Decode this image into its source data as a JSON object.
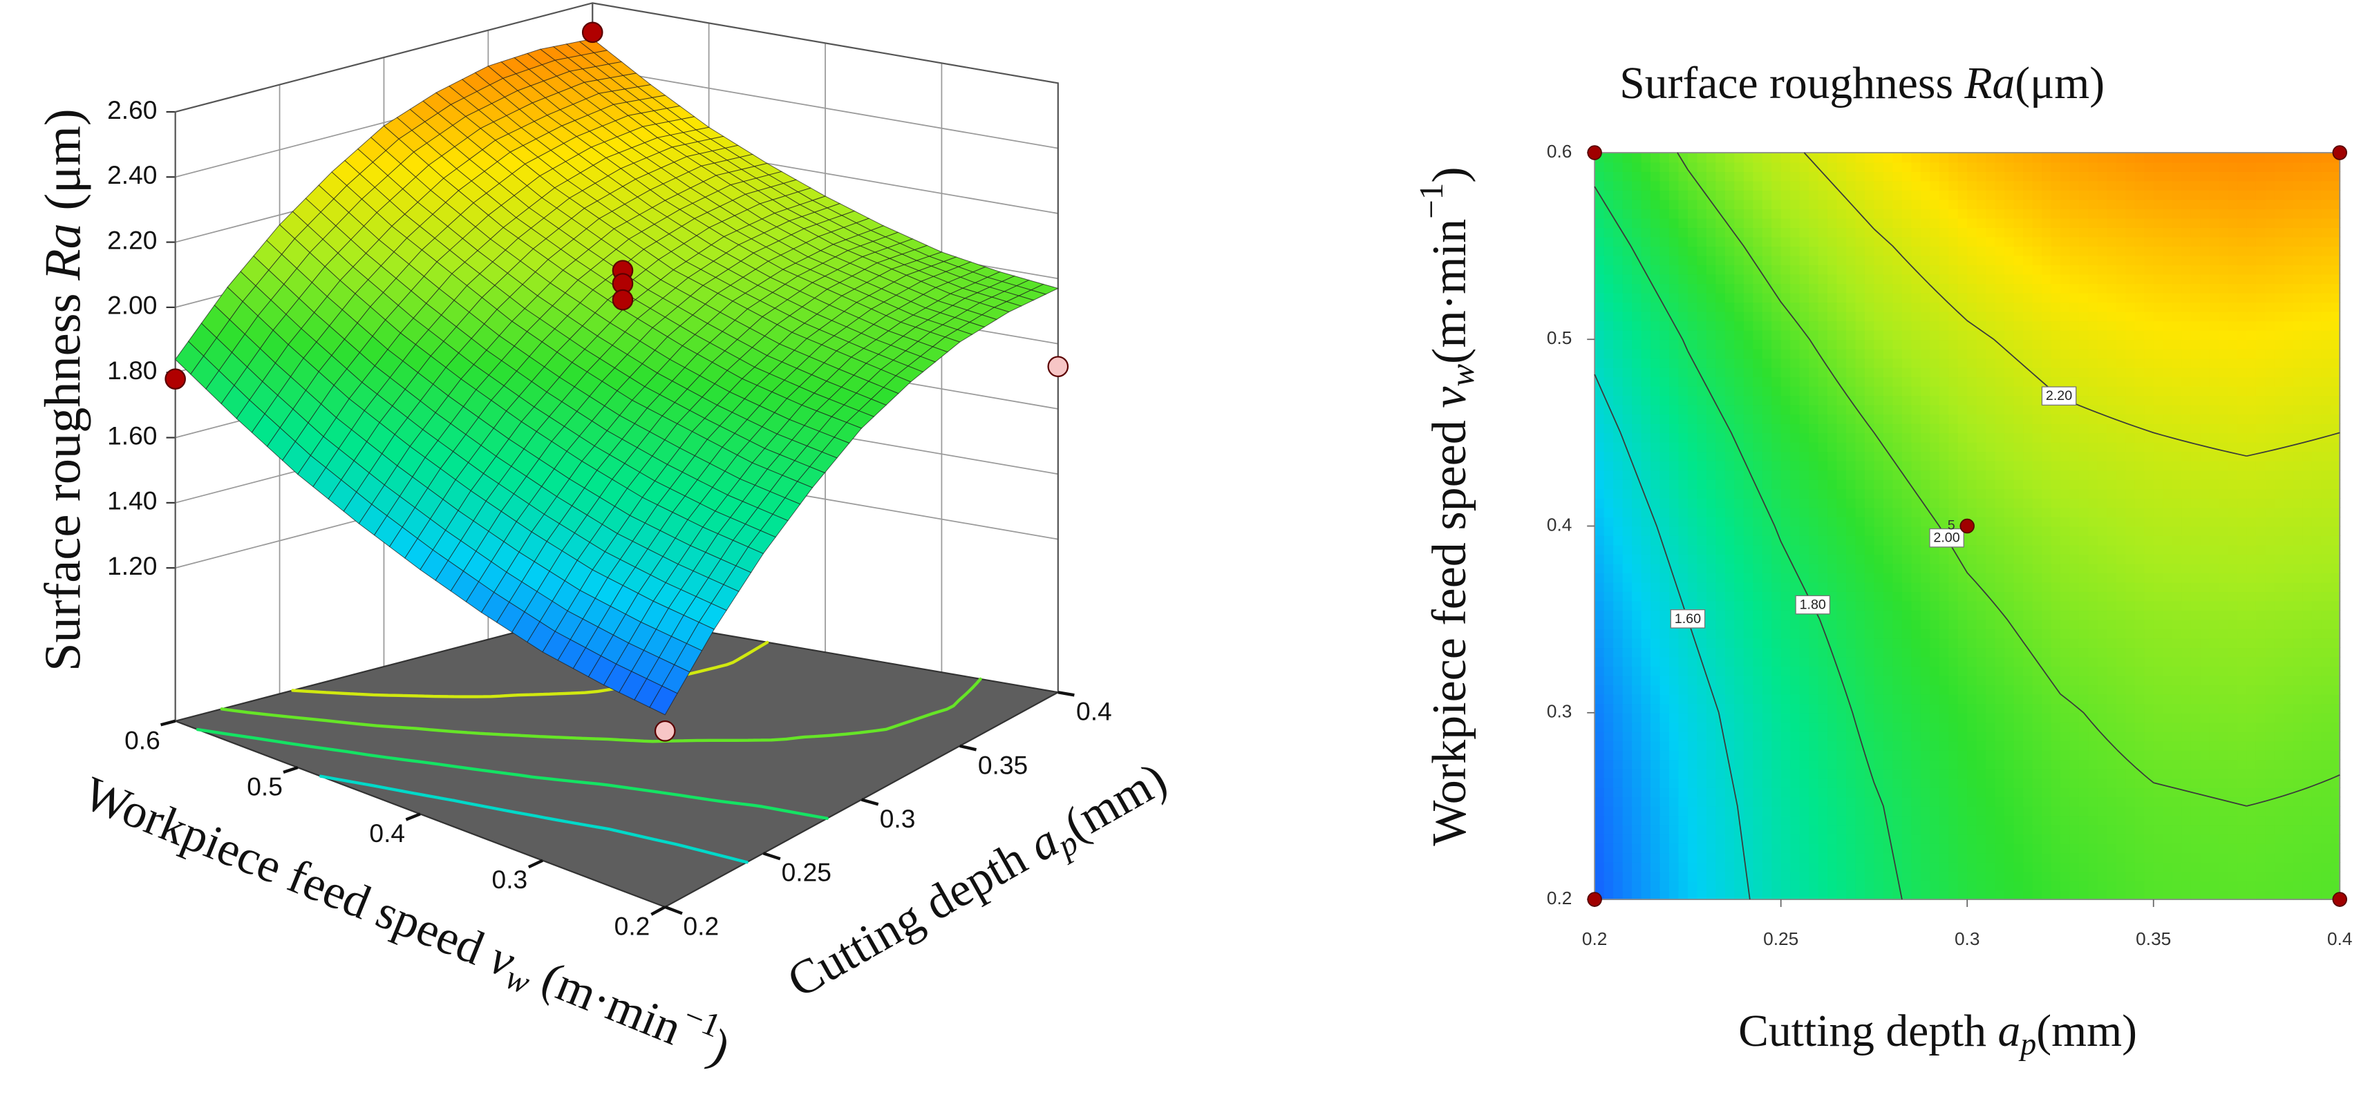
{
  "chart_data": [
    {
      "type": "surface3d",
      "xlabel": [
        {
          "text": "Cutting depth "
        },
        {
          "text": "a",
          "italic": true
        },
        {
          "text": "p",
          "italic": true,
          "sub": true
        },
        {
          "text": "(mm)"
        }
      ],
      "ylabel": [
        {
          "text": "Workpiece feed speed "
        },
        {
          "text": "v",
          "italic": true
        },
        {
          "text": "w",
          "italic": true,
          "sub": true
        },
        {
          "text": " (m·min"
        },
        {
          "text": "−1",
          "sup": true
        },
        {
          "text": ")"
        }
      ],
      "zlabel": [
        {
          "text": "Surface roughness "
        },
        {
          "text": "Ra",
          "italic": true
        },
        {
          "text": " (μm)"
        }
      ],
      "x": [
        0.2,
        0.225,
        0.25,
        0.275,
        0.3,
        0.325,
        0.35,
        0.375,
        0.4
      ],
      "y": [
        0.2,
        0.25,
        0.3,
        0.35,
        0.4,
        0.45,
        0.5,
        0.55,
        0.6
      ],
      "z": [
        [
          1.32,
          1.5,
          1.65,
          1.77,
          1.87,
          1.93,
          1.97,
          1.98,
          1.97
        ],
        [
          1.34,
          1.52,
          1.67,
          1.79,
          1.89,
          1.96,
          1.99,
          2.0,
          1.99
        ],
        [
          1.37,
          1.55,
          1.7,
          1.83,
          1.92,
          1.99,
          2.03,
          2.04,
          2.02
        ],
        [
          1.42,
          1.6,
          1.75,
          1.87,
          1.97,
          2.04,
          2.07,
          2.08,
          2.07
        ],
        [
          1.48,
          1.66,
          1.81,
          1.93,
          2.03,
          2.09,
          2.13,
          2.14,
          2.13
        ],
        [
          1.55,
          1.73,
          1.88,
          2.0,
          2.1,
          2.17,
          2.2,
          2.22,
          2.2
        ],
        [
          1.63,
          1.81,
          1.96,
          2.09,
          2.18,
          2.25,
          2.29,
          2.3,
          2.28
        ],
        [
          1.73,
          1.91,
          2.06,
          2.18,
          2.28,
          2.35,
          2.38,
          2.4,
          2.38
        ],
        [
          1.84,
          2.02,
          2.17,
          2.29,
          2.39,
          2.45,
          2.49,
          2.5,
          2.49
        ]
      ],
      "xlim": [
        0.2,
        0.4
      ],
      "xticks": [
        0.2,
        0.25,
        0.3,
        0.35,
        0.4
      ],
      "ylim": [
        0.2,
        0.6
      ],
      "yticks": [
        0.2,
        0.3,
        0.4,
        0.5,
        0.6
      ],
      "zlim": [
        0.73,
        2.6
      ],
      "zticks": [
        {
          "value": 1.2,
          "label": "1.20"
        },
        {
          "value": 1.4,
          "label": "1.40"
        },
        {
          "value": 1.6,
          "label": "1.60"
        },
        {
          "value": 1.8,
          "label": "1.80"
        },
        {
          "value": 2.0,
          "label": "2.00"
        },
        {
          "value": 2.2,
          "label": "2.20"
        },
        {
          "value": 2.4,
          "label": "2.40"
        },
        {
          "value": 2.6,
          "label": "2.60"
        }
      ],
      "colorscale": [
        "#1560ff",
        "#00d0f5",
        "#00e68c",
        "#2ee02e",
        "#a8ec1e",
        "#ffe600",
        "#ff8a00"
      ],
      "floor_color": "#5e5e5e",
      "floor_contours": [
        1.6,
        1.8,
        2.0,
        2.2
      ],
      "points": {
        "x": [
          0.4,
          0.2,
          0.3,
          0.3,
          0.3,
          0.4,
          0.2
        ],
        "y": [
          0.6,
          0.6,
          0.4,
          0.4,
          0.4,
          0.2,
          0.2
        ],
        "z": [
          2.51,
          1.78,
          2.15,
          2.11,
          2.06,
          1.73,
          1.27
        ],
        "colors": [
          "#b00000",
          "#b00000",
          "#b00000",
          "#b00000",
          "#b00000",
          "#f7c6c6",
          "#f7c6c6"
        ]
      }
    },
    {
      "type": "contour",
      "title": [
        {
          "text": "Surface roughness "
        },
        {
          "text": "Ra",
          "italic": true
        },
        {
          "text": "(μm)"
        }
      ],
      "xlabel": [
        {
          "text": "Cutting depth "
        },
        {
          "text": "a",
          "italic": true
        },
        {
          "text": "p",
          "italic": true,
          "sub": true
        },
        {
          "text": "(mm)"
        }
      ],
      "ylabel": [
        {
          "text": "Workpiece feed speed "
        },
        {
          "text": "v",
          "italic": true
        },
        {
          "text": "w",
          "italic": true,
          "sub": true
        },
        {
          "text": "(m·min"
        },
        {
          "text": "−1",
          "sup": true
        },
        {
          "text": ")"
        }
      ],
      "x": [
        0.2,
        0.225,
        0.25,
        0.275,
        0.3,
        0.325,
        0.35,
        0.375,
        0.4
      ],
      "y": [
        0.2,
        0.25,
        0.3,
        0.35,
        0.4,
        0.45,
        0.5,
        0.55,
        0.6
      ],
      "z": [
        [
          1.32,
          1.5,
          1.65,
          1.77,
          1.87,
          1.93,
          1.97,
          1.98,
          1.97
        ],
        [
          1.34,
          1.52,
          1.67,
          1.79,
          1.89,
          1.96,
          1.99,
          2.0,
          1.99
        ],
        [
          1.37,
          1.55,
          1.7,
          1.83,
          1.92,
          1.99,
          2.03,
          2.04,
          2.02
        ],
        [
          1.42,
          1.6,
          1.75,
          1.87,
          1.97,
          2.04,
          2.07,
          2.08,
          2.07
        ],
        [
          1.48,
          1.66,
          1.81,
          1.93,
          2.03,
          2.09,
          2.13,
          2.14,
          2.13
        ],
        [
          1.55,
          1.73,
          1.88,
          2.0,
          2.1,
          2.17,
          2.2,
          2.22,
          2.2
        ],
        [
          1.63,
          1.81,
          1.96,
          2.09,
          2.18,
          2.25,
          2.29,
          2.3,
          2.28
        ],
        [
          1.73,
          1.91,
          2.06,
          2.18,
          2.28,
          2.35,
          2.38,
          2.4,
          2.38
        ],
        [
          1.84,
          2.02,
          2.17,
          2.29,
          2.39,
          2.45,
          2.49,
          2.5,
          2.49
        ]
      ],
      "xlim": [
        0.2,
        0.4
      ],
      "xticks": [
        0.2,
        0.25,
        0.3,
        0.35,
        0.4
      ],
      "ylim": [
        0.2,
        0.6
      ],
      "yticks": [
        0.2,
        0.3,
        0.4,
        0.5,
        0.6
      ],
      "colorscale": [
        "#1560ff",
        "#00d0f5",
        "#00e68c",
        "#2ee02e",
        "#a8ec1e",
        "#ffe600",
        "#ff8a00"
      ],
      "contour_levels": [
        {
          "value": 1.6,
          "label": "1.60"
        },
        {
          "value": 1.8,
          "label": "1.80"
        },
        {
          "value": 2.0,
          "label": "2.00"
        },
        {
          "value": 2.2,
          "label": "2.20"
        }
      ],
      "points": {
        "x": [
          0.2,
          0.4,
          0.2,
          0.4,
          0.3
        ],
        "y": [
          0.2,
          0.2,
          0.6,
          0.6,
          0.4
        ],
        "labels": [
          null,
          null,
          null,
          null,
          "5"
        ],
        "color": "#a00000"
      }
    }
  ]
}
